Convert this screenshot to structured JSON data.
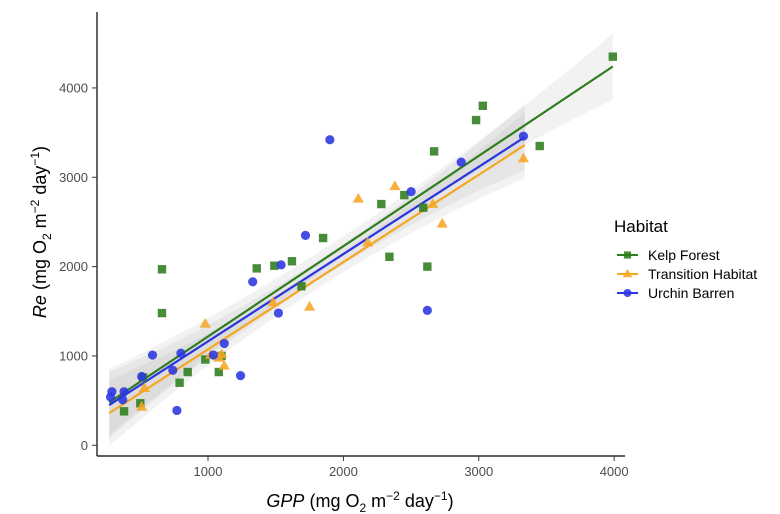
{
  "chart_data": {
    "type": "scatter",
    "xlabel_italic": "GPP",
    "xlabel_units": "(mg O",
    "ylabel_italic": "Re",
    "ylabel_units": "(mg O",
    "units_sub": "2",
    "units_mid": " m",
    "units_sup1": "−2",
    "units_day": " day",
    "units_sup2": "−1",
    "units_close": ")",
    "xlim": [
      180,
      4080
    ],
    "ylim": [
      -120,
      4850
    ],
    "xticks": [
      1000,
      2000,
      3000,
      4000
    ],
    "yticks": [
      0,
      1000,
      2000,
      3000,
      4000
    ],
    "grid": false,
    "legend_title": "Habitat",
    "legend_position": "right",
    "series": [
      {
        "name": "Kelp Forest",
        "color": "#2e7d1e",
        "marker": "square",
        "x": [
          380,
          500,
          520,
          660,
          660,
          790,
          850,
          980,
          1080,
          1100,
          1360,
          1490,
          1620,
          1690,
          1850,
          2280,
          2340,
          2450,
          2590,
          2620,
          2670,
          2980,
          3030,
          3450,
          3990
        ],
        "y": [
          380,
          470,
          760,
          1970,
          1480,
          700,
          820,
          960,
          820,
          1000,
          1980,
          2010,
          2060,
          1780,
          2320,
          2700,
          2110,
          2800,
          2660,
          2000,
          3290,
          3640,
          3800,
          3350,
          4350
        ],
        "fit": {
          "x": [
            270,
            3990
          ],
          "y": [
            480,
            4240
          ]
        }
      },
      {
        "name": "Transition Habitat",
        "color": "#f5a623",
        "marker": "triangle",
        "x": [
          510,
          530,
          980,
          1020,
          1080,
          1100,
          1120,
          1480,
          1750,
          2110,
          2180,
          2380,
          2660,
          2730,
          3330
        ],
        "y": [
          430,
          640,
          1360,
          1010,
          980,
          1020,
          890,
          1600,
          1550,
          2760,
          2270,
          2900,
          2700,
          2480,
          3210
        ],
        "fit": {
          "x": [
            270,
            3340
          ],
          "y": [
            360,
            3360
          ]
        }
      },
      {
        "name": "Urchin Barren",
        "color": "#2a35e0",
        "marker": "circle",
        "x": [
          280,
          290,
          370,
          380,
          510,
          590,
          740,
          770,
          800,
          1040,
          1120,
          1240,
          1330,
          1520,
          1540,
          1720,
          1900,
          2500,
          2620,
          2870,
          3330
        ],
        "y": [
          540,
          600,
          510,
          600,
          770,
          1010,
          840,
          390,
          1030,
          1010,
          1140,
          780,
          1830,
          1480,
          2020,
          2350,
          3420,
          2840,
          1510,
          3170,
          3460
        ],
        "fit": {
          "x": [
            270,
            3340
          ],
          "y": [
            450,
            3450
          ]
        }
      }
    ]
  }
}
